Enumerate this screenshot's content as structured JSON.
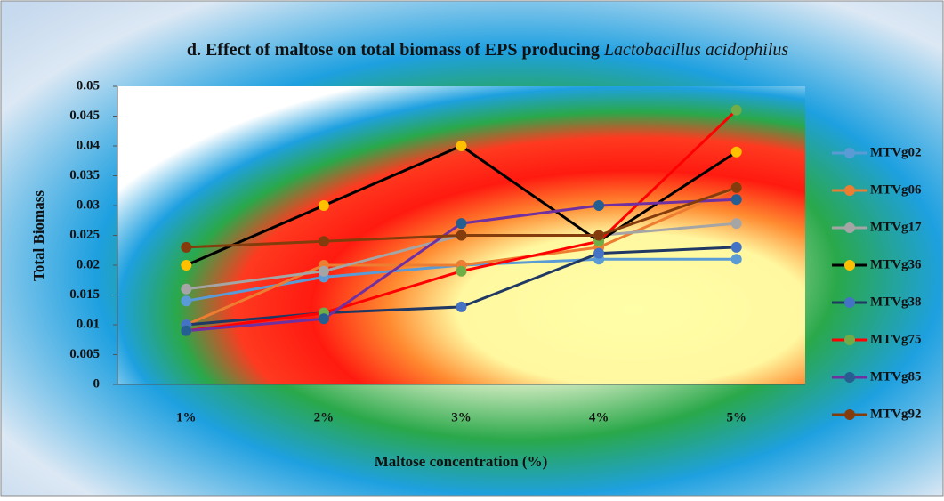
{
  "chart_data": {
    "type": "line",
    "title": "d. Effect of maltose on total biomass of EPS producing",
    "title_species": "Lactobacillus acidophilus",
    "x_label": "Maltose concentration (%)",
    "y_label": "Total Biomass",
    "categories": [
      "1%",
      "2%",
      "3%",
      "4%",
      "5%"
    ],
    "ylim": [
      0,
      0.05
    ],
    "yticks": [
      0,
      0.005,
      0.01,
      0.015,
      0.02,
      0.025,
      0.03,
      0.035,
      0.04,
      0.045,
      0.05
    ],
    "legend": "right",
    "series": [
      {
        "name": "MTVg02",
        "color": "#5b9bd5",
        "marker_color": "#5b9bd5",
        "values": [
          0.014,
          0.018,
          0.02,
          0.021,
          0.021
        ]
      },
      {
        "name": "MTVg06",
        "color": "#ed7d31",
        "marker_color": "#ed7d31",
        "values": [
          0.01,
          0.02,
          0.02,
          0.023,
          0.033
        ]
      },
      {
        "name": "MTVg17",
        "color": "#a5a5a5",
        "marker_color": "#a5a5a5",
        "values": [
          0.016,
          0.019,
          0.025,
          0.025,
          0.027
        ]
      },
      {
        "name": "MTVg36",
        "color": "#000000",
        "marker_color": "#ffc000",
        "values": [
          0.02,
          0.03,
          0.04,
          0.024,
          0.039
        ]
      },
      {
        "name": "MTVg38",
        "color": "#203864",
        "marker_color": "#4472c4",
        "values": [
          0.01,
          0.012,
          0.013,
          0.022,
          0.023
        ]
      },
      {
        "name": "MTVg75",
        "color": "#ff0000",
        "marker_color": "#70ad47",
        "values": [
          0.009,
          0.012,
          0.019,
          0.024,
          0.046
        ]
      },
      {
        "name": "MTVg85",
        "color": "#7030a0",
        "marker_color": "#255e91",
        "values": [
          0.009,
          0.011,
          0.027,
          0.03,
          0.031
        ]
      },
      {
        "name": "MTVg92",
        "color": "#843c0c",
        "marker_color": "#843c0c",
        "values": [
          0.023,
          0.024,
          0.025,
          0.025,
          0.033
        ]
      }
    ]
  }
}
